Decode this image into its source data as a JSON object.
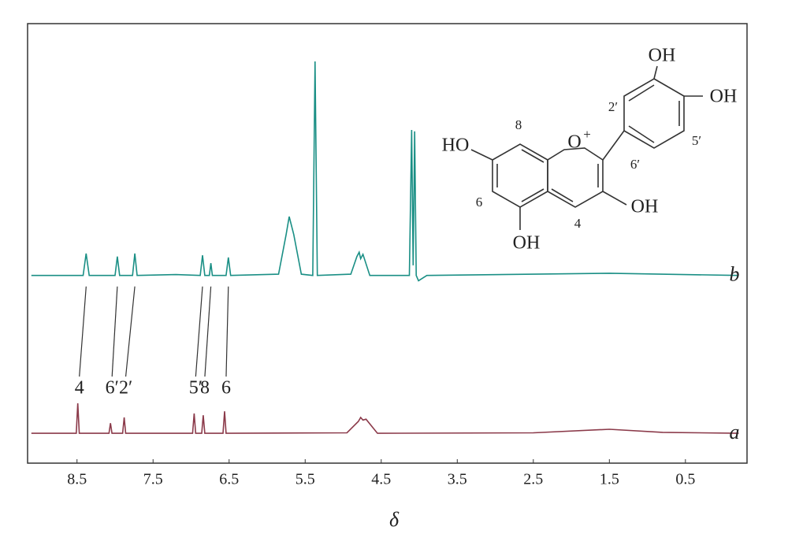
{
  "chart_data": {
    "type": "line",
    "x_label": "δ",
    "xlim": [
      9.15,
      -0.31
    ],
    "xticks": [
      8.5,
      7.5,
      6.5,
      5.5,
      4.5,
      3.5,
      2.5,
      1.5,
      0.5
    ],
    "ylim": [
      0,
      100
    ],
    "series": [
      {
        "name": "b",
        "color": "#1a8f85",
        "x": [
          9.1,
          8.42,
          8.38,
          8.34,
          8.0,
          7.97,
          7.94,
          7.77,
          7.74,
          7.71,
          7.2,
          6.88,
          6.85,
          6.82,
          6.76,
          6.74,
          6.72,
          6.54,
          6.51,
          6.48,
          5.85,
          5.75,
          5.71,
          5.65,
          5.55,
          5.4,
          5.37,
          5.34,
          4.9,
          4.82,
          4.79,
          4.77,
          4.74,
          4.65,
          4.13,
          4.1,
          4.08,
          4.06,
          4.04,
          4.01,
          3.9,
          1.5,
          -0.2
        ],
        "values": [
          42.7,
          42.7,
          47.7,
          42.7,
          42.7,
          47.0,
          42.7,
          42.7,
          47.7,
          42.7,
          42.9,
          42.7,
          47.3,
          42.7,
          42.7,
          45.5,
          42.7,
          42.7,
          46.8,
          42.7,
          43.0,
          52,
          56.1,
          52,
          43.0,
          42.7,
          91.4,
          42.7,
          43.0,
          47.0,
          48.0,
          46.5,
          47.5,
          42.7,
          42.7,
          75.8,
          45,
          75.5,
          42.7,
          41.5,
          42.7,
          43.2,
          42.7
        ]
      },
      {
        "name": "a",
        "color": "#8b3a4a",
        "x": [
          9.1,
          8.51,
          8.49,
          8.47,
          8.08,
          8.06,
          8.04,
          7.9,
          7.88,
          7.86,
          6.98,
          6.96,
          6.94,
          6.86,
          6.84,
          6.82,
          6.58,
          6.56,
          6.54,
          4.95,
          4.8,
          4.77,
          4.74,
          4.7,
          4.55,
          2.5,
          1.5,
          0.8,
          -0.2
        ],
        "values": [
          6.8,
          6.8,
          13.6,
          6.8,
          6.8,
          9.1,
          6.8,
          6.8,
          10.4,
          6.8,
          6.8,
          11.3,
          6.8,
          6.8,
          10.9,
          6.8,
          6.8,
          11.8,
          6.8,
          6.9,
          9.5,
          10.4,
          9.8,
          10.0,
          6.8,
          6.9,
          7.7,
          7.0,
          6.8
        ]
      }
    ],
    "assignments": [
      {
        "label": "4",
        "b": 8.38,
        "a": 8.49
      },
      {
        "label": "6′",
        "b": 7.97,
        "a": 8.06
      },
      {
        "label": "2′",
        "b": 7.74,
        "a": 7.88
      },
      {
        "label": "5′",
        "b": 6.85,
        "a": 6.96
      },
      {
        "label": "8",
        "b": 6.74,
        "a": 6.84
      },
      {
        "label": "6",
        "b": 6.51,
        "a": 6.56
      }
    ],
    "structure_labels": [
      "OH",
      "OH",
      "HO",
      "O",
      "+",
      "OH",
      "OH",
      "8",
      "2′",
      "5′",
      "6′",
      "6",
      "4"
    ]
  }
}
